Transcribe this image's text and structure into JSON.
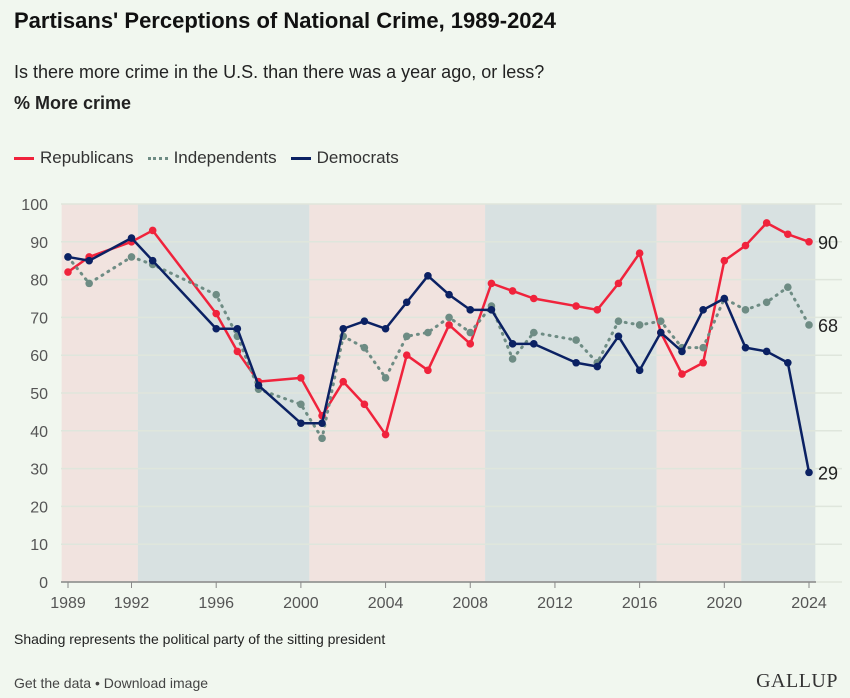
{
  "title": "Partisans' Perceptions of National Crime, 1989-2024",
  "subtitle": "Is there more crime in the U.S. than there was a year ago, or less?",
  "measure": "% More crime",
  "note": "Shading represents the political party of the sitting president",
  "footer": {
    "get_data": "Get the data",
    "sep": " • ",
    "download": "Download image"
  },
  "logo": "GALLUP",
  "colors": {
    "rep": "#f0233c",
    "ind": "#6e8c84",
    "dem": "#0b2163",
    "rep_shade": "#f1e3df",
    "dem_shade": "#d8e1e1"
  },
  "chart_data": {
    "type": "line",
    "title": "Partisans' Perceptions of National Crime, 1989-2024",
    "ylabel": "% More crime",
    "ylim": [
      0,
      100
    ],
    "yticks": [
      0,
      10,
      20,
      30,
      40,
      50,
      60,
      70,
      80,
      90,
      100
    ],
    "xticks": [
      1989,
      1992,
      1996,
      2000,
      2004,
      2008,
      2012,
      2016,
      2020,
      2024
    ],
    "xlim": [
      1989,
      2024
    ],
    "legend_position": "top-left",
    "x": [
      1989,
      1990,
      1992,
      1993,
      1996,
      1997,
      1998,
      2000,
      2001,
      2002,
      2003,
      2004,
      2005,
      2006,
      2007,
      2008,
      2009,
      2010,
      2011,
      2013,
      2014,
      2015,
      2016,
      2017,
      2018,
      2019,
      2020,
      2021,
      2022,
      2023,
      2024
    ],
    "series": [
      {
        "name": "Republicans",
        "key": "rep",
        "style": "solid",
        "values": [
          82,
          86,
          90,
          93,
          71,
          61,
          53,
          54,
          44,
          53,
          47,
          39,
          60,
          56,
          68,
          63,
          79,
          77,
          75,
          73,
          72,
          79,
          87,
          66,
          55,
          58,
          85,
          89,
          95,
          92,
          90
        ],
        "end_label": "90"
      },
      {
        "name": "Independents",
        "key": "ind",
        "style": "dotted",
        "values": [
          86,
          79,
          86,
          84,
          76,
          65,
          51,
          47,
          38,
          65,
          62,
          54,
          65,
          66,
          70,
          66,
          73,
          59,
          66,
          64,
          58,
          69,
          68,
          69,
          62,
          62,
          75,
          72,
          74,
          78,
          68
        ],
        "end_label": "68"
      },
      {
        "name": "Democrats",
        "key": "dem",
        "style": "solid",
        "values": [
          86,
          85,
          91,
          85,
          67,
          67,
          52,
          42,
          42,
          67,
          69,
          67,
          74,
          81,
          76,
          72,
          72,
          63,
          63,
          58,
          57,
          65,
          56,
          66,
          61,
          72,
          75,
          62,
          61,
          58,
          29
        ],
        "end_label": "29"
      }
    ],
    "president_periods": [
      {
        "party": "rep",
        "from": 1988.7,
        "to": 1992.3
      },
      {
        "party": "dem",
        "from": 1992.3,
        "to": 2000.4
      },
      {
        "party": "rep",
        "from": 2000.4,
        "to": 2008.7
      },
      {
        "party": "dem",
        "from": 2008.7,
        "to": 2016.8
      },
      {
        "party": "rep",
        "from": 2016.8,
        "to": 2020.8
      },
      {
        "party": "dem",
        "from": 2020.8,
        "to": 2024.3
      }
    ]
  }
}
